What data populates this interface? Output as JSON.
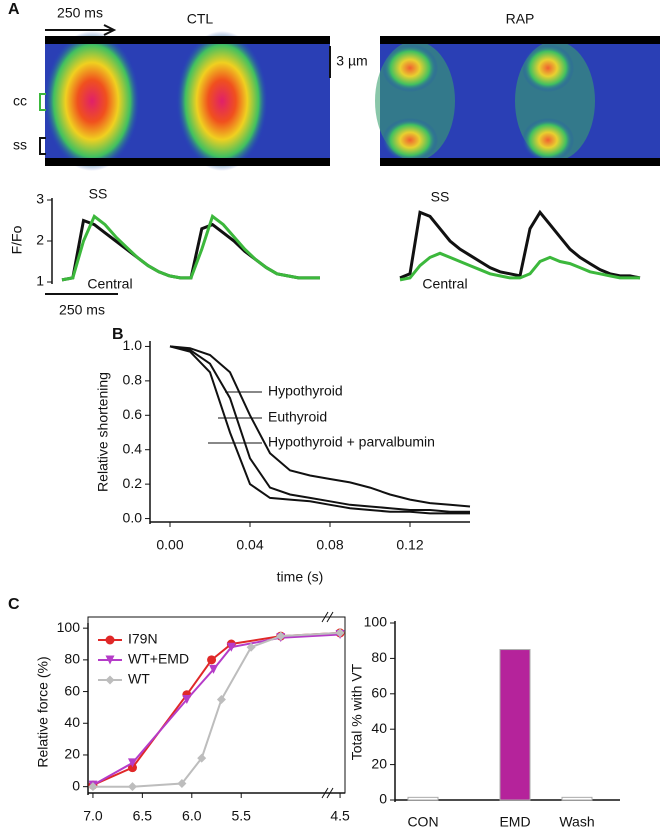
{
  "chart_data": [
    {
      "type": "line",
      "panel_label": "A",
      "title": "CTL",
      "y_label": "F/Fo",
      "x": [
        0,
        25,
        50,
        75,
        100,
        125,
        150,
        175,
        200,
        225,
        250,
        275,
        300,
        325,
        350,
        375,
        400,
        425,
        450,
        475,
        500,
        525,
        550,
        575,
        600
      ],
      "xlim": [
        0,
        600
      ],
      "ylim": [
        1,
        3
      ],
      "yticks": [
        1,
        2,
        3
      ],
      "series": [
        {
          "name": "SS",
          "color": "#111111",
          "values": [
            1.05,
            1.1,
            2.5,
            2.4,
            2.2,
            2.0,
            1.8,
            1.6,
            1.4,
            1.25,
            1.15,
            1.1,
            1.1,
            2.3,
            2.4,
            2.2,
            2.0,
            1.75,
            1.55,
            1.35,
            1.2,
            1.15,
            1.1,
            1.1,
            1.1
          ]
        },
        {
          "name": "Central",
          "color": "#3cb83c",
          "values": [
            1.05,
            1.1,
            2.0,
            2.6,
            2.4,
            2.1,
            1.85,
            1.6,
            1.4,
            1.25,
            1.15,
            1.1,
            1.1,
            1.8,
            2.6,
            2.4,
            2.1,
            1.8,
            1.55,
            1.35,
            1.2,
            1.15,
            1.1,
            1.1,
            1.1
          ]
        }
      ],
      "annotations": [
        "250 ms",
        "3 µm",
        "cc",
        "ss",
        "250 ms"
      ]
    },
    {
      "type": "line",
      "title": "RAP",
      "x": [
        0,
        25,
        50,
        75,
        100,
        125,
        150,
        175,
        200,
        225,
        250,
        275,
        300,
        325,
        350,
        375,
        400,
        425,
        450,
        475,
        500,
        525,
        550,
        575,
        600
      ],
      "xlim": [
        0,
        600
      ],
      "ylim": [
        1,
        3
      ],
      "series": [
        {
          "name": "SS",
          "color": "#111111",
          "values": [
            1.1,
            1.2,
            2.7,
            2.6,
            2.3,
            2.0,
            1.8,
            1.65,
            1.5,
            1.35,
            1.25,
            1.2,
            1.15,
            2.3,
            2.7,
            2.4,
            2.1,
            1.8,
            1.6,
            1.45,
            1.3,
            1.2,
            1.15,
            1.15,
            1.1
          ]
        },
        {
          "name": "Central",
          "color": "#3cb83c",
          "values": [
            1.05,
            1.1,
            1.4,
            1.6,
            1.7,
            1.6,
            1.5,
            1.4,
            1.3,
            1.2,
            1.15,
            1.1,
            1.1,
            1.2,
            1.5,
            1.6,
            1.5,
            1.45,
            1.35,
            1.25,
            1.2,
            1.15,
            1.1,
            1.1,
            1.1
          ]
        }
      ]
    },
    {
      "type": "line",
      "panel_label": "B",
      "x_label": "time (s)",
      "y_label": "Relative shortening",
      "x": [
        0,
        0.01,
        0.02,
        0.03,
        0.04,
        0.05,
        0.06,
        0.07,
        0.08,
        0.09,
        0.1,
        0.11,
        0.12,
        0.13,
        0.14,
        0.15
      ],
      "xlim": [
        -0.01,
        0.15
      ],
      "ylim": [
        -0.02,
        1.02
      ],
      "xticks": [
        {
          "value": 0,
          "label": "0.00"
        },
        {
          "value": 0.04,
          "label": "0.04"
        },
        {
          "value": 0.08,
          "label": "0.08"
        },
        {
          "value": 0.12,
          "label": "0.12"
        }
      ],
      "yticks": [
        {
          "value": 0,
          "label": "0.0"
        },
        0.2,
        0.4,
        0.6,
        0.8,
        {
          "value": 1,
          "label": "1.0"
        }
      ],
      "series": [
        {
          "name": "Hypothyroid",
          "color": "#111111",
          "values": [
            1,
            0.99,
            0.95,
            0.85,
            0.6,
            0.38,
            0.28,
            0.25,
            0.23,
            0.21,
            0.18,
            0.14,
            0.11,
            0.09,
            0.08,
            0.07
          ]
        },
        {
          "name": "Euthyroid",
          "color": "#111111",
          "values": [
            1,
            0.98,
            0.9,
            0.7,
            0.35,
            0.18,
            0.14,
            0.12,
            0.1,
            0.08,
            0.07,
            0.06,
            0.05,
            0.05,
            0.04,
            0.04
          ]
        },
        {
          "name": "Hypothyroid + parvalbumin",
          "color": "#111111",
          "values": [
            1,
            0.97,
            0.85,
            0.5,
            0.2,
            0.12,
            0.11,
            0.1,
            0.08,
            0.06,
            0.05,
            0.04,
            0.04,
            0.03,
            0.03,
            0.03
          ]
        }
      ]
    },
    {
      "type": "scatter",
      "panel_label": "C",
      "y_label": "Relative force (%)",
      "xlim": [
        7.05,
        4.45
      ],
      "ylim": [
        -4,
        102
      ],
      "xticks": [
        {
          "value": 7,
          "label": "7.0"
        },
        6.5,
        {
          "value": 6,
          "label": "6.0"
        },
        5.5,
        4.5
      ],
      "yticks": [
        0,
        20,
        40,
        60,
        80,
        100
      ],
      "series": [
        {
          "name": "I79N",
          "color": "#e02828",
          "marker": "circle",
          "x": [
            7.0,
            6.6,
            6.05,
            5.8,
            5.6,
            5.1,
            4.5
          ],
          "values": [
            1,
            12,
            58,
            80,
            90,
            95,
            97
          ]
        },
        {
          "name": "WT+EMD",
          "color": "#b53cc8",
          "marker": "triangle",
          "x": [
            7.0,
            6.6,
            6.05,
            5.78,
            5.6,
            5.1,
            4.5
          ],
          "values": [
            1,
            15,
            55,
            74,
            88,
            94,
            96
          ]
        },
        {
          "name": "WT",
          "color": "#bdbdbd",
          "marker": "diamond",
          "x": [
            7.0,
            6.6,
            6.1,
            5.9,
            5.7,
            5.4,
            5.1,
            4.5
          ],
          "values": [
            0,
            0,
            2,
            18,
            55,
            88,
            95,
            97
          ]
        }
      ]
    },
    {
      "type": "bar",
      "y_label": "Total % with VT",
      "categories": [
        "CON",
        "EMD",
        "Wash"
      ],
      "values": [
        1.5,
        85,
        1.5
      ],
      "colors": [
        "#ffffff",
        "#b5239b",
        "#ffffff"
      ],
      "ylim": [
        0,
        100
      ],
      "yticks": [
        0,
        20,
        40,
        60,
        80,
        100
      ]
    }
  ]
}
